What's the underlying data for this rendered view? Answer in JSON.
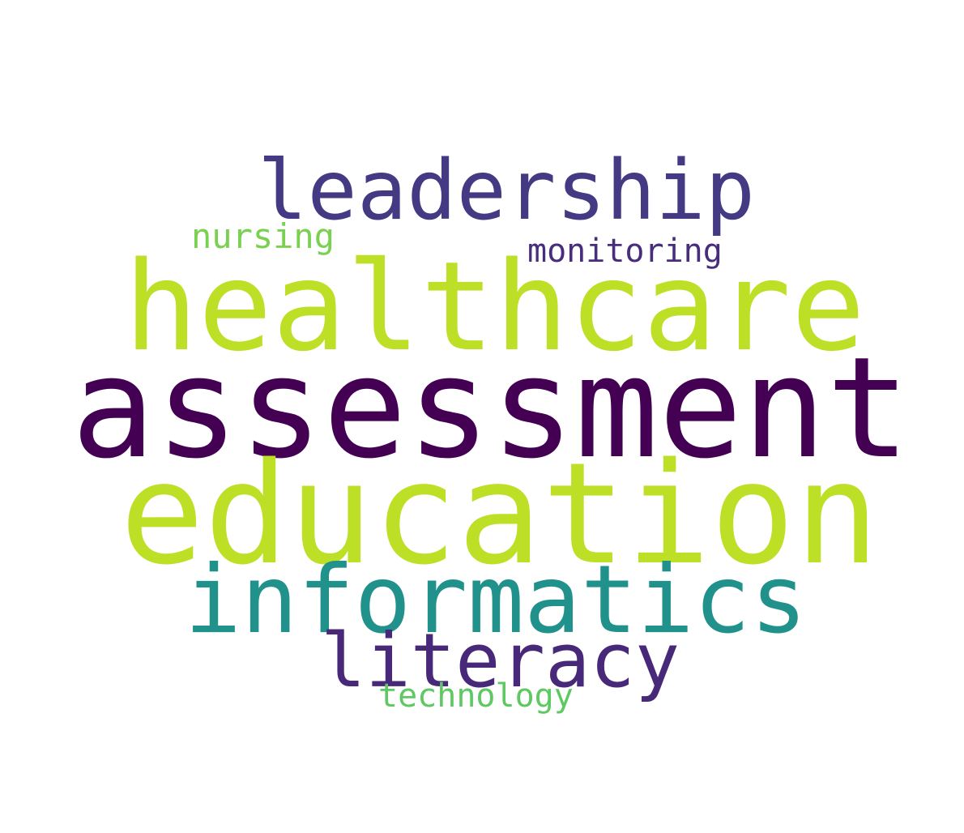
{
  "words": [
    {
      "id": "leadership",
      "text": "leadership",
      "color": "#443983"
    },
    {
      "id": "nursing",
      "text": "nursing",
      "color": "#7ad151"
    },
    {
      "id": "monitoring",
      "text": "monitoring",
      "color": "#472d7b"
    },
    {
      "id": "healthcare",
      "text": "healthcare",
      "color": "#bddf26"
    },
    {
      "id": "assessment",
      "text": "assessment",
      "color": "#440154"
    },
    {
      "id": "education",
      "text": "education",
      "color": "#bddf26"
    },
    {
      "id": "informatics",
      "text": "informatics",
      "color": "#21918c"
    },
    {
      "id": "literacy",
      "text": "literacy",
      "color": "#482878"
    },
    {
      "id": "technology",
      "text": "technology",
      "color": "#5ec962"
    }
  ]
}
